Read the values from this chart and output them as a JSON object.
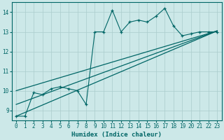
{
  "xlabel": "Humidex (Indice chaleur)",
  "bg_color": "#cce8e8",
  "grid_color": "#aacccc",
  "line_color": "#006666",
  "xlim": [
    -0.5,
    23.5
  ],
  "ylim": [
    8.5,
    14.5
  ],
  "yticks": [
    9,
    10,
    11,
    12,
    13,
    14
  ],
  "xticks": [
    0,
    1,
    2,
    3,
    4,
    5,
    6,
    7,
    8,
    9,
    10,
    11,
    12,
    13,
    14,
    15,
    16,
    17,
    18,
    19,
    20,
    21,
    22,
    23
  ],
  "main_series": {
    "x": [
      0,
      1,
      2,
      3,
      4,
      5,
      6,
      7,
      8,
      9,
      10,
      11,
      12,
      13,
      14,
      15,
      16,
      17,
      18,
      19,
      20,
      21,
      22,
      23
    ],
    "y": [
      8.7,
      8.7,
      9.9,
      9.8,
      10.1,
      10.2,
      10.1,
      10.0,
      9.3,
      13.0,
      13.0,
      14.1,
      13.0,
      13.5,
      13.6,
      13.5,
      13.8,
      14.2,
      13.3,
      12.8,
      12.9,
      13.0,
      13.0,
      13.0
    ]
  },
  "trend_lines": [
    {
      "x0": 0,
      "y0": 8.7,
      "x1": 23,
      "y1": 13.05
    },
    {
      "x0": 0,
      "y0": 9.3,
      "x1": 23,
      "y1": 13.05
    },
    {
      "x0": 0,
      "y0": 10.0,
      "x1": 23,
      "y1": 13.05
    }
  ]
}
